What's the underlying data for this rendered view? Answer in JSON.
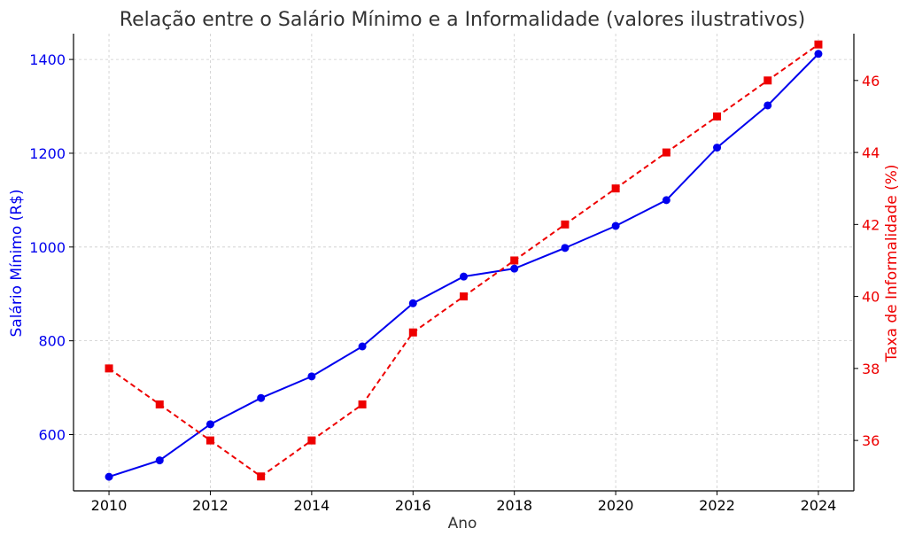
{
  "chart_data": {
    "type": "line",
    "title": "Relação entre o Salário Mínimo e a Informalidade (valores ilustrativos)",
    "xlabel": "Ano",
    "ylabel_left": "Salário Mínimo (R$)",
    "ylabel_right": "Taxa de Informalidade (%)",
    "x": [
      2010,
      2011,
      2012,
      2013,
      2014,
      2015,
      2016,
      2017,
      2018,
      2019,
      2020,
      2021,
      2022,
      2023,
      2024
    ],
    "x_ticks": [
      "2010",
      "2012",
      "2014",
      "2016",
      "2018",
      "2020",
      "2022",
      "2024"
    ],
    "x_tick_values": [
      2010,
      2012,
      2014,
      2016,
      2018,
      2020,
      2022,
      2024
    ],
    "xlim": [
      2009.3,
      2024.7
    ],
    "y_left_ticks": [
      "600",
      "800",
      "1000",
      "1200",
      "1400"
    ],
    "y_left_tick_values": [
      600,
      800,
      1000,
      1200,
      1400
    ],
    "ylim_left": [
      480,
      1455
    ],
    "y_right_ticks": [
      "36",
      "38",
      "40",
      "42",
      "44",
      "46"
    ],
    "y_right_tick_values": [
      36,
      38,
      40,
      42,
      44,
      46
    ],
    "ylim_right": [
      34.6,
      47.3
    ],
    "grid": true,
    "series": [
      {
        "axis": "left",
        "color": "#0000ee",
        "marker": "circle",
        "line_style": "solid",
        "values": [
          510,
          545,
          622,
          678,
          724,
          788,
          880,
          937,
          954,
          998,
          1045,
          1100,
          1212,
          1302,
          1412
        ]
      },
      {
        "axis": "right",
        "color": "#ee0000",
        "marker": "square",
        "line_style": "dashed",
        "values": [
          38,
          37,
          36,
          35,
          36,
          37,
          39,
          40,
          41,
          42,
          43,
          44,
          45,
          46,
          47
        ]
      }
    ],
    "colors": {
      "left_axis": "#0000ee",
      "right_axis": "#ee0000",
      "title": "#333333"
    }
  }
}
